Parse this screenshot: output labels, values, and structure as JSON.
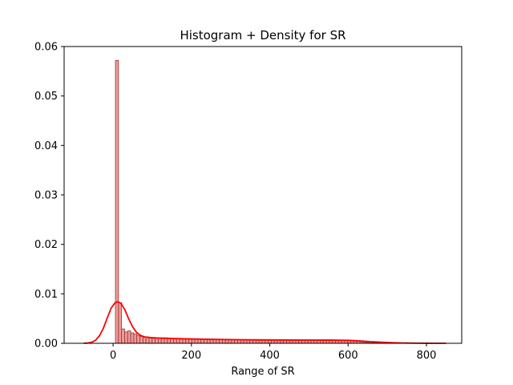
{
  "chart_data": {
    "type": "bar",
    "title": "Histogram + Density for SR",
    "xlabel": "Range of SR",
    "ylabel": "",
    "xlim": [
      -125,
      890
    ],
    "ylim": [
      0,
      0.06
    ],
    "xticks": [
      0,
      200,
      400,
      600,
      800
    ],
    "xtick_labels": [
      "0",
      "200",
      "400",
      "600",
      "800"
    ],
    "yticks": [
      0,
      0.01,
      0.02,
      0.03,
      0.04,
      0.05,
      0.06
    ],
    "ytick_labels": [
      "0.00",
      "0.01",
      "0.02",
      "0.03",
      "0.04",
      "0.05",
      "0.06"
    ],
    "grid": false,
    "colors": {
      "bar_fill": "#f08080",
      "bar_fill_opacity": 0.8,
      "bar_edge": "#8b3a3a",
      "density": "#ff0000"
    },
    "histogram": {
      "bin_width": 7.8,
      "bin_starts": [
        6.0,
        13.8,
        21.6,
        29.4,
        37.2,
        45.0,
        52.8,
        60.6,
        68.4,
        76.2,
        84.0,
        91.8,
        99.6,
        107.4,
        115.2,
        123.0,
        130.8,
        138.6,
        146.4,
        154.2,
        162.0,
        169.8,
        177.6,
        185.4,
        193.2,
        201.0,
        208.8,
        216.6,
        224.4,
        232.2,
        240.0,
        247.8,
        255.6,
        263.4,
        271.2,
        279.0,
        286.8,
        294.6,
        302.4,
        310.2,
        318.0,
        325.8,
        333.6,
        341.4,
        349.2,
        357.0,
        364.8,
        372.6,
        380.4,
        388.2,
        396.0,
        403.8,
        411.6,
        419.4,
        427.2,
        435.0,
        442.8,
        450.6,
        458.4,
        466.2,
        474.0,
        481.8,
        489.6,
        497.4,
        505.2,
        513.0,
        520.8,
        528.6,
        536.4,
        544.2,
        552.0,
        559.8,
        567.6,
        575.4,
        583.2,
        591.0,
        598.8,
        606.6,
        614.4,
        622.2,
        630.0,
        637.8,
        645.6,
        653.4,
        661.2,
        669.0,
        676.8,
        684.6,
        692.4,
        700.2,
        708.0,
        715.8,
        723.6,
        731.4,
        739.2,
        747.0,
        754.8,
        762.6,
        770.4,
        778.2,
        786.0
      ],
      "densities": [
        0.0572,
        0.0082,
        0.0029,
        0.0023,
        0.0025,
        0.0021,
        0.0019,
        0.0016,
        0.0014,
        0.0012,
        0.0013,
        0.0012,
        0.0012,
        0.0011,
        0.0011,
        0.0011,
        0.0011,
        0.001,
        0.001,
        0.001,
        0.001,
        0.001,
        0.0009,
        0.0009,
        0.0009,
        0.0009,
        0.0009,
        0.0008,
        0.0008,
        0.0008,
        0.0008,
        0.0008,
        0.0008,
        0.0008,
        0.0008,
        0.0007,
        0.0007,
        0.0007,
        0.0007,
        0.0007,
        0.0007,
        0.0007,
        0.0007,
        0.0007,
        0.0007,
        0.0007,
        0.0007,
        0.0007,
        0.0007,
        0.0007,
        0.0007,
        0.0007,
        0.0007,
        0.0007,
        0.0007,
        0.0007,
        0.0007,
        0.0007,
        0.0007,
        0.0007,
        0.0007,
        0.0007,
        0.0007,
        0.0007,
        0.0007,
        0.0007,
        0.0007,
        0.0007,
        0.0007,
        0.0007,
        0.0007,
        0.0007,
        0.0006,
        0.0006,
        0.0006,
        0.0006,
        0.0006,
        0.0006,
        0.0005,
        0.0004,
        0.0003,
        0.0002,
        0.0002,
        0.0001,
        0.0001,
        0.0001,
        0.0001,
        0.0001,
        0.0001,
        0.0,
        0.0,
        0.0,
        0.0,
        0.0,
        0.0,
        0.0,
        0.0,
        0.0,
        0.0,
        0.0,
        0.0
      ]
    },
    "density_curve": {
      "x": [
        -75,
        -65,
        -55,
        -45,
        -35,
        -25,
        -15,
        -5,
        5,
        12,
        20,
        30,
        40,
        50,
        60,
        70,
        80,
        90,
        100,
        120,
        140,
        160,
        180,
        200,
        250,
        300,
        350,
        400,
        450,
        500,
        550,
        580,
        600,
        620,
        640,
        660,
        680,
        700,
        720,
        740,
        760,
        780,
        800,
        820,
        850
      ],
      "y": [
        0.0,
        5e-05,
        0.0002,
        0.0006,
        0.0015,
        0.003,
        0.0051,
        0.0071,
        0.0082,
        0.0084,
        0.0081,
        0.0068,
        0.0049,
        0.0033,
        0.0022,
        0.0016,
        0.0013,
        0.0012,
        0.0011,
        0.00105,
        0.001,
        0.00095,
        0.0009,
        0.00088,
        0.0008,
        0.00075,
        0.0007,
        0.00068,
        0.00066,
        0.00065,
        0.00064,
        0.00063,
        0.0006,
        0.00052,
        0.00042,
        0.00032,
        0.00023,
        0.00016,
        0.0001,
        6e-05,
        4e-05,
        2e-05,
        1e-05,
        5e-06,
        0.0
      ]
    }
  }
}
